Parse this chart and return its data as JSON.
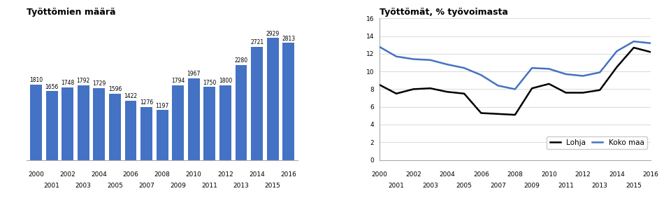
{
  "bar_years": [
    2000,
    2001,
    2002,
    2003,
    2004,
    2005,
    2006,
    2007,
    2008,
    2009,
    2010,
    2011,
    2012,
    2013,
    2014,
    2015,
    2016
  ],
  "bar_values": [
    1810,
    1656,
    1748,
    1792,
    1729,
    1596,
    1422,
    1276,
    1197,
    1794,
    1967,
    1750,
    1800,
    2280,
    2721,
    2929,
    2813
  ],
  "bar_color": "#4472c4",
  "bar_title": "Työttömien määrä",
  "line_years": [
    2000,
    2001,
    2002,
    2003,
    2004,
    2005,
    2006,
    2007,
    2008,
    2009,
    2010,
    2011,
    2012,
    2013,
    2014,
    2015,
    2016
  ],
  "lohja_values": [
    8.5,
    7.5,
    8.0,
    8.1,
    7.7,
    7.5,
    5.3,
    5.2,
    5.1,
    8.1,
    8.6,
    7.6,
    7.6,
    7.9,
    10.5,
    12.7,
    12.2
  ],
  "koko_maa_values": [
    12.8,
    11.7,
    11.4,
    11.3,
    10.8,
    10.4,
    9.6,
    8.4,
    8.0,
    10.4,
    10.3,
    9.7,
    9.5,
    9.9,
    12.3,
    13.4,
    13.2
  ],
  "line_title": "Työttömät, % työvoimasta",
  "lohja_color": "#000000",
  "koko_maa_color": "#4472c4",
  "legend_lohja": "Lohja",
  "legend_koko_maa": "Koko maa",
  "line_ylim": [
    0,
    16
  ],
  "line_yticks": [
    0,
    2,
    4,
    6,
    8,
    10,
    12,
    14,
    16
  ],
  "background_color": "#ffffff",
  "grid_color": "#cccccc"
}
